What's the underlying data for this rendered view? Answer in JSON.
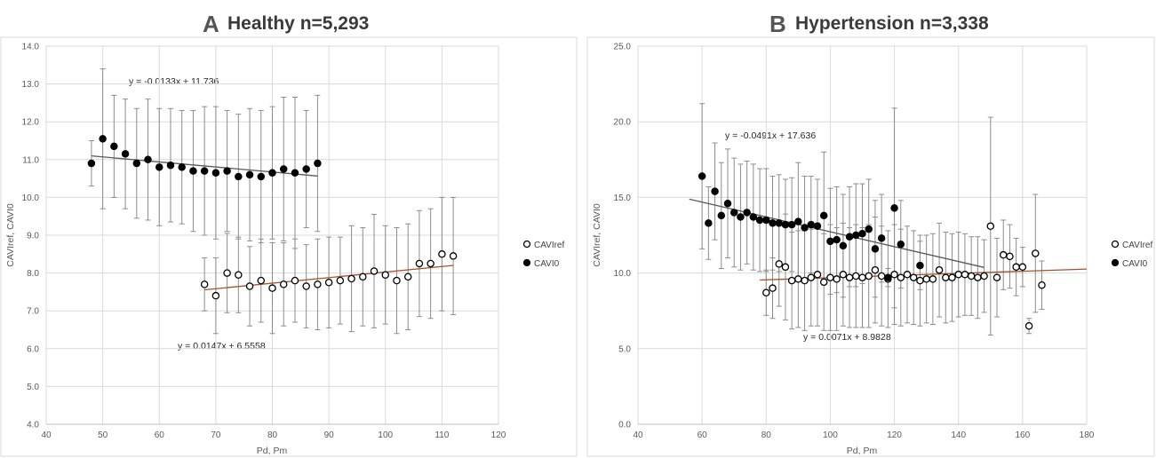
{
  "chart_data": [
    {
      "type": "scatter",
      "letter": "A",
      "title": "Healthy  n=5,293",
      "xlabel": "Pd, Pm",
      "ylabel": "CAVIref, CAVI0",
      "xlim": [
        40,
        120
      ],
      "ylim": [
        4.0,
        14.0
      ],
      "xticks": [
        "40",
        "50",
        "60",
        "70",
        "80",
        "90",
        "100",
        "110",
        "120"
      ],
      "yticks": [
        "4.0",
        "5.0",
        "6.0",
        "7.0",
        "8.0",
        "9.0",
        "10.0",
        "11.0",
        "12.0",
        "13.0",
        "14.0"
      ],
      "grid": true,
      "legend_position": "right",
      "series": [
        {
          "name": "CAVIref",
          "marker": "open-circle",
          "x": [
            68,
            70,
            72,
            74,
            76,
            78,
            80,
            82,
            84,
            86,
            88,
            90,
            92,
            94,
            96,
            98,
            100,
            102,
            104,
            106,
            108,
            110,
            112
          ],
          "y": [
            7.7,
            7.4,
            8.0,
            7.95,
            7.65,
            7.8,
            7.6,
            7.7,
            7.8,
            7.65,
            7.7,
            7.75,
            7.8,
            7.85,
            7.9,
            8.05,
            7.95,
            7.8,
            7.9,
            8.25,
            8.25,
            8.5,
            8.45
          ],
          "err": [
            0.7,
            1.0,
            1.05,
            1.0,
            1.05,
            1.1,
            1.2,
            1.1,
            1.1,
            1.1,
            1.2,
            1.2,
            1.15,
            1.4,
            1.3,
            1.5,
            1.3,
            1.4,
            1.4,
            1.4,
            1.45,
            1.5,
            1.55
          ]
        },
        {
          "name": "CAVI0",
          "marker": "filled-circle",
          "x": [
            48,
            50,
            52,
            54,
            56,
            58,
            60,
            62,
            64,
            66,
            68,
            70,
            72,
            74,
            76,
            78,
            80,
            82,
            84,
            86,
            88
          ],
          "y": [
            10.9,
            11.55,
            11.35,
            11.15,
            10.9,
            11.0,
            10.8,
            10.85,
            10.8,
            10.7,
            10.7,
            10.65,
            10.7,
            10.55,
            10.6,
            10.55,
            10.65,
            10.75,
            10.65,
            10.75,
            10.9
          ],
          "err": [
            0.6,
            1.85,
            1.35,
            1.45,
            1.45,
            1.6,
            1.55,
            1.5,
            1.5,
            1.6,
            1.7,
            1.75,
            1.6,
            1.65,
            1.75,
            1.75,
            1.75,
            1.9,
            2.0,
            1.55,
            1.8
          ]
        }
      ],
      "trendlines": [
        {
          "series": "CAVI0",
          "slope": -0.0133,
          "intercept": 11.736,
          "x_range": [
            48,
            88
          ],
          "color": "#595959",
          "label": "y = -0.0133x + 11.736"
        },
        {
          "series": "CAVIref",
          "slope": 0.0147,
          "intercept": 6.5558,
          "x_range": [
            68,
            112
          ],
          "color": "#a0522d",
          "label": "y = 0.0147x + 6.5558"
        }
      ]
    },
    {
      "type": "scatter",
      "letter": "B",
      "title": "Hypertension  n=3,338",
      "xlabel": "Pd, Pm",
      "ylabel": "CAVIref, CAVI0",
      "xlim": [
        40,
        180
      ],
      "ylim": [
        0.0,
        25.0
      ],
      "xticks": [
        "40",
        "60",
        "80",
        "100",
        "120",
        "140",
        "160",
        "180"
      ],
      "yticks": [
        "0.0",
        "5.0",
        "10.0",
        "15.0",
        "20.0",
        "25.0"
      ],
      "grid": true,
      "legend_position": "right",
      "series": [
        {
          "name": "CAVIref",
          "marker": "open-circle",
          "x": [
            80,
            82,
            84,
            86,
            88,
            90,
            92,
            94,
            96,
            98,
            100,
            102,
            104,
            106,
            108,
            110,
            112,
            114,
            116,
            118,
            120,
            122,
            124,
            126,
            128,
            130,
            132,
            134,
            136,
            138,
            140,
            142,
            144,
            146,
            148,
            150,
            152,
            154,
            156,
            158,
            160,
            162,
            164,
            166
          ],
          "y": [
            8.7,
            9.0,
            10.6,
            10.4,
            9.5,
            9.6,
            9.5,
            9.7,
            9.9,
            9.4,
            9.7,
            9.6,
            9.9,
            9.7,
            9.8,
            9.7,
            9.8,
            10.2,
            9.8,
            9.6,
            9.9,
            9.7,
            9.9,
            9.7,
            9.5,
            9.6,
            9.6,
            10.2,
            9.7,
            9.7,
            9.9,
            9.9,
            9.8,
            9.7,
            9.8,
            13.1,
            9.7,
            11.2,
            11.1,
            10.4,
            10.4,
            6.5,
            11.3,
            9.2
          ],
          "err": [
            1.5,
            2.0,
            2.8,
            3.5,
            3.2,
            3.2,
            3.3,
            3.2,
            3.4,
            3.2,
            3.5,
            3.4,
            3.4,
            3.3,
            3.4,
            3.3,
            3.4,
            3.5,
            3.3,
            3.2,
            3.3,
            3.2,
            3.2,
            3.1,
            3.0,
            2.9,
            3.0,
            3.1,
            3.0,
            2.9,
            2.8,
            2.7,
            2.6,
            2.7,
            2.4,
            7.2,
            2.6,
            2.3,
            2.1,
            1.9,
            1.3,
            0.5,
            3.9,
            1.6
          ]
        },
        {
          "name": "CAVI0",
          "marker": "filled-circle",
          "x": [
            60,
            62,
            64,
            66,
            68,
            70,
            72,
            74,
            76,
            78,
            80,
            82,
            84,
            86,
            88,
            90,
            92,
            94,
            96,
            98,
            100,
            102,
            104,
            106,
            108,
            110,
            112,
            114,
            116,
            118,
            120,
            122,
            128
          ],
          "y": [
            16.4,
            13.3,
            15.4,
            13.8,
            14.6,
            14.0,
            13.7,
            14.0,
            13.7,
            13.5,
            13.5,
            13.3,
            13.3,
            13.2,
            13.2,
            13.4,
            13.0,
            13.2,
            13.1,
            13.8,
            12.1,
            12.2,
            11.8,
            12.4,
            12.5,
            12.6,
            12.9,
            11.6,
            12.3,
            9.7,
            14.3,
            11.9,
            10.5
          ],
          "err": [
            4.8,
            2.4,
            3.2,
            3.5,
            3.6,
            3.6,
            3.5,
            3.4,
            3.5,
            3.4,
            3.4,
            3.1,
            3.2,
            3.0,
            3.1,
            3.9,
            3.4,
            3.2,
            3.1,
            4.2,
            3.5,
            3.5,
            3.4,
            3.3,
            3.4,
            3.3,
            3.3,
            3.2,
            2.9,
            0.6,
            6.6,
            2.9,
            1.6
          ]
        }
      ],
      "trendlines": [
        {
          "series": "CAVI0",
          "slope": -0.0491,
          "intercept": 17.636,
          "x_range": [
            56,
            148
          ],
          "color": "#595959",
          "label": "y = -0.0491x + 17.636"
        },
        {
          "series": "CAVIref",
          "slope": 0.0071,
          "intercept": 8.9828,
          "x_range": [
            78,
            180
          ],
          "color": "#a0522d",
          "label": "y = 0.0071x + 8.9828"
        }
      ]
    }
  ]
}
